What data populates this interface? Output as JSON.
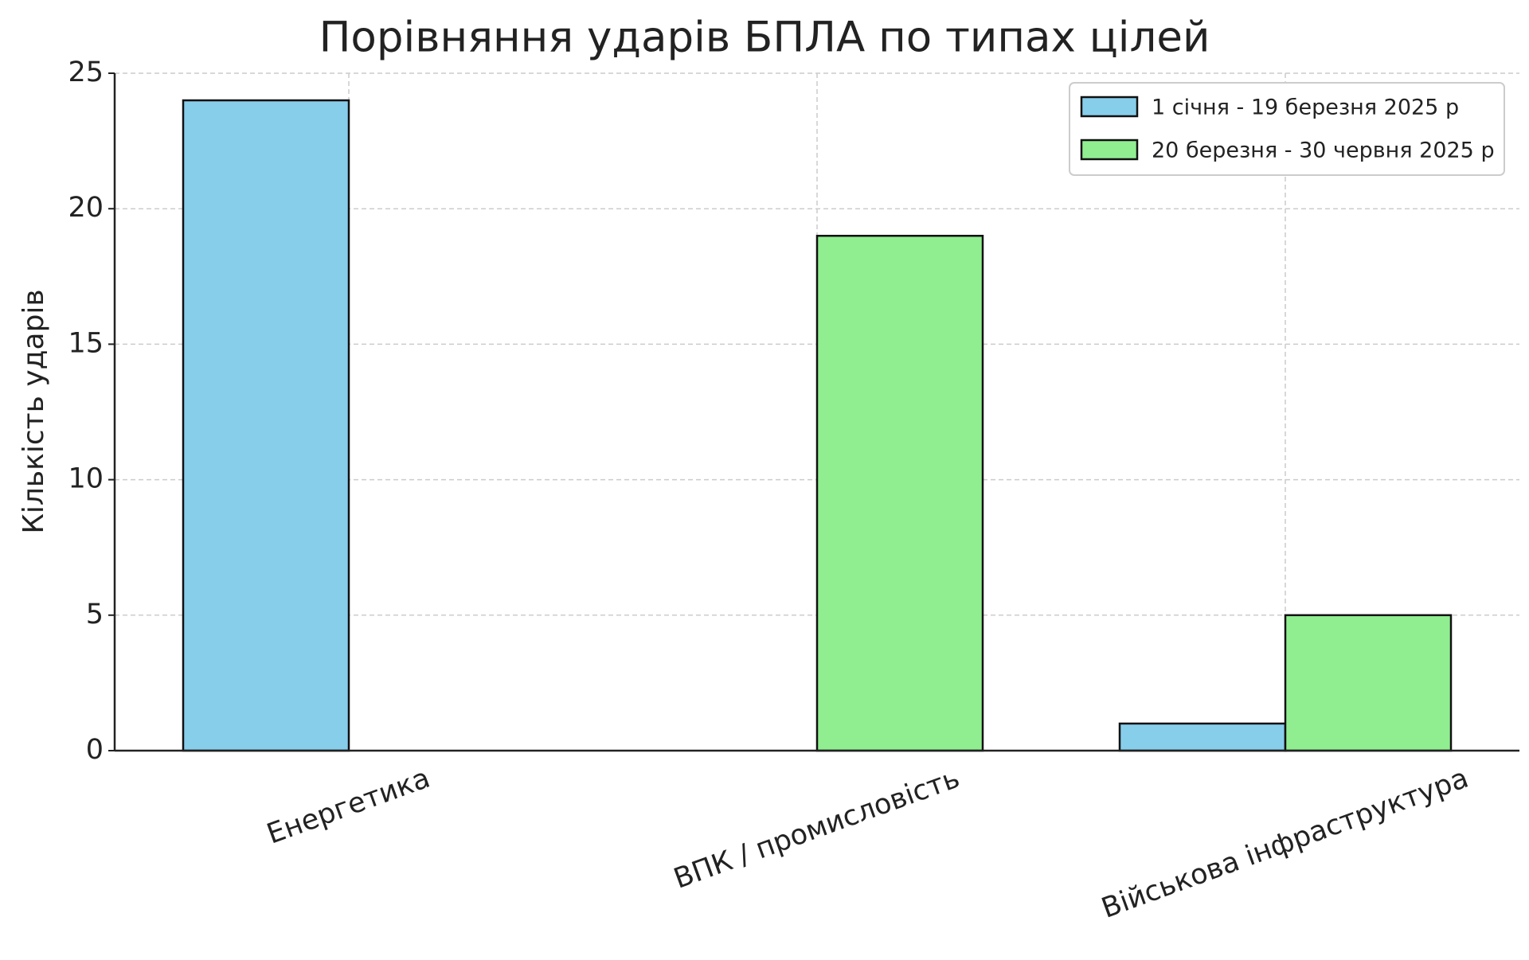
{
  "chart_data": {
    "type": "bar",
    "title": "Порівняння ударів БПЛА по типах цілей",
    "y_label": "Кількість ударів",
    "categories": [
      "Енергетика",
      "ВПК / промисловість",
      "Військова інфраструктура"
    ],
    "series": [
      {
        "name": "1 січня - 19 березня 2025 р",
        "color": "#87ceeb",
        "values": [
          24,
          0,
          1
        ]
      },
      {
        "name": "20 березня - 30 червня 2025 р",
        "color": "#90ee90",
        "values": [
          0,
          19,
          5
        ]
      }
    ],
    "ylim": [
      0,
      25
    ],
    "yticks": [
      0,
      5,
      10,
      15,
      20,
      25
    ],
    "grid": true,
    "legend": "upper right"
  }
}
